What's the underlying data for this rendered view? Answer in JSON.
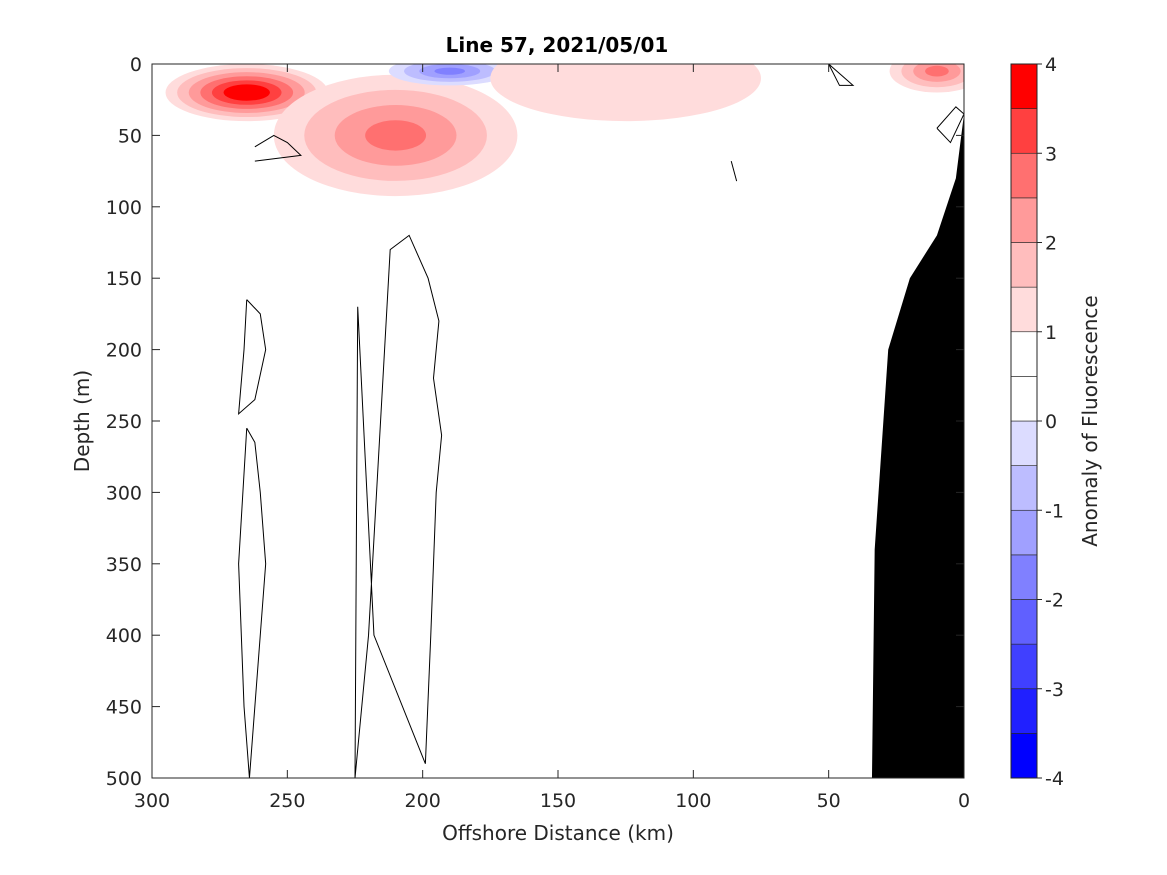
{
  "chart_data": {
    "type": "heatmap",
    "title": "Line 57, 2021/05/01",
    "xlabel": "Offshore Distance (km)",
    "ylabel": "Depth (m)",
    "xlim": [
      300,
      0
    ],
    "ylim": [
      0,
      500
    ],
    "x_reversed": true,
    "y_reversed": true,
    "xticks": [
      300,
      250,
      200,
      150,
      100,
      50,
      0
    ],
    "yticks": [
      0,
      50,
      100,
      150,
      200,
      250,
      300,
      350,
      400,
      450,
      500
    ],
    "colorbar": {
      "label": "Anomaly of Fluorescence",
      "range": [
        -4,
        4
      ],
      "ticks": [
        -4,
        -3,
        -2,
        -1,
        0,
        1,
        2,
        3,
        4
      ],
      "levels": [
        {
          "from": -4.0,
          "to": -3.5,
          "color": "#0000ff"
        },
        {
          "from": -3.5,
          "to": -3.0,
          "color": "#2020ff"
        },
        {
          "from": -3.0,
          "to": -2.5,
          "color": "#4040ff"
        },
        {
          "from": -2.5,
          "to": -2.0,
          "color": "#6060ff"
        },
        {
          "from": -2.0,
          "to": -1.5,
          "color": "#8080ff"
        },
        {
          "from": -1.5,
          "to": -1.0,
          "color": "#a0a0ff"
        },
        {
          "from": -1.0,
          "to": -0.5,
          "color": "#bdbdff"
        },
        {
          "from": -0.5,
          "to": 0.0,
          "color": "#dcdcff"
        },
        {
          "from": 0.0,
          "to": 0.5,
          "color": "#ffffff"
        },
        {
          "from": 0.5,
          "to": 1.0,
          "color": "#ffffff"
        },
        {
          "from": 1.0,
          "to": 1.5,
          "color": "#ffdcdc"
        },
        {
          "from": 1.5,
          "to": 2.0,
          "color": "#ffbdbd"
        },
        {
          "from": 2.0,
          "to": 2.5,
          "color": "#ff9a9a"
        },
        {
          "from": 2.5,
          "to": 3.0,
          "color": "#ff7070"
        },
        {
          "from": 3.0,
          "to": 3.5,
          "color": "#ff4040"
        },
        {
          "from": 3.5,
          "to": 4.0,
          "color": "#ff0000"
        }
      ]
    },
    "anomaly_features": [
      {
        "sign": "positive",
        "peak_anomaly": 4.0,
        "center_km": 265,
        "center_depth_m": 20,
        "x_extent_km": [
          300,
          240
        ],
        "depth_extent_m": [
          0,
          40
        ]
      },
      {
        "sign": "positive",
        "peak_anomaly": 2.5,
        "center_km": 210,
        "center_depth_m": 50,
        "x_extent_km": [
          245,
          155
        ],
        "depth_extent_m": [
          15,
          100
        ]
      },
      {
        "sign": "negative",
        "peak_anomaly": -2.5,
        "center_km": 190,
        "center_depth_m": 5,
        "x_extent_km": [
          215,
          170
        ],
        "depth_extent_m": [
          0,
          20
        ]
      },
      {
        "sign": "positive",
        "peak_anomaly": 1.0,
        "center_km": 125,
        "center_depth_m": 10,
        "x_extent_km": [
          150,
          50
        ],
        "depth_extent_m": [
          0,
          60
        ]
      },
      {
        "sign": "positive",
        "peak_anomaly": 2.5,
        "center_km": 10,
        "center_depth_m": 5,
        "x_extent_km": [
          35,
          0
        ],
        "depth_extent_m": [
          0,
          30
        ]
      }
    ],
    "zero_contours": [
      {
        "x_km": [
          262,
          255,
          250,
          245,
          262
        ],
        "depth_m": [
          58,
          50,
          55,
          64,
          68
        ]
      },
      {
        "x_km": [
          265,
          260,
          258,
          262,
          268,
          266,
          265
        ],
        "depth_m": [
          165,
          175,
          200,
          235,
          245,
          200,
          165
        ]
      },
      {
        "x_km": [
          265,
          262,
          260,
          258,
          260,
          262,
          264,
          266,
          268,
          265
        ],
        "depth_m": [
          255,
          265,
          300,
          350,
          400,
          450,
          500,
          450,
          350,
          255
        ]
      },
      {
        "x_km": [
          225,
          220,
          212,
          205,
          198,
          194,
          196,
          193,
          195,
          197,
          199,
          218,
          224,
          225
        ],
        "depth_m": [
          500,
          400,
          130,
          120,
          150,
          180,
          220,
          260,
          300,
          400,
          490,
          400,
          170,
          500
        ]
      },
      {
        "x_km": [
          86,
          85,
          84,
          86
        ],
        "depth_m": [
          68,
          75,
          82,
          68
        ]
      },
      {
        "x_km": [
          50,
          46,
          41,
          50
        ],
        "depth_m": [
          0,
          15,
          15,
          0
        ]
      },
      {
        "x_km": [
          10,
          5,
          0,
          3,
          10
        ],
        "depth_m": [
          45,
          55,
          35,
          30,
          45
        ]
      }
    ],
    "bathymetry_mask": {
      "color": "#000000",
      "x_km": [
        0,
        0,
        3,
        10,
        20,
        28,
        33,
        34
      ],
      "depth_m": [
        500,
        35,
        80,
        120,
        150,
        200,
        340,
        500
      ]
    }
  }
}
